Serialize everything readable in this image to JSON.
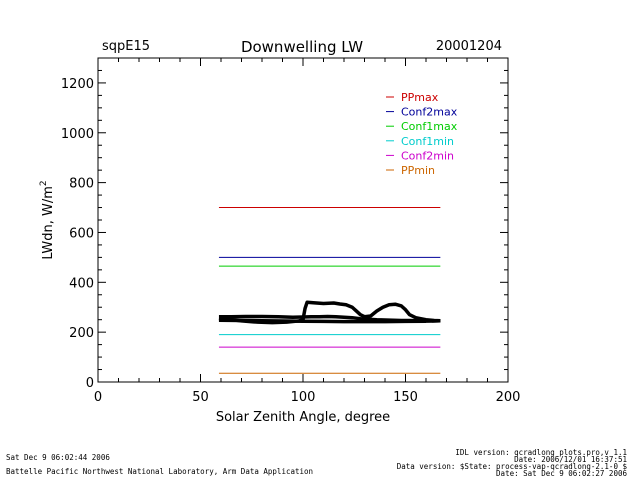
{
  "header": {
    "site": "sqpE15",
    "title": "Downwelling LW",
    "date": "20001204"
  },
  "footer": {
    "left_line1": "Sat Dec  9 06:02:44 2006",
    "left_line2": "Battelle Pacific Northwest National Laboratory, Arm Data Application",
    "right_line1": "IDL version: qcradlong_plots.pro,v 1.1",
    "right_line2": "Date: 2006/12/01 16:37:51",
    "right_line3": "Data version: $State: process-vap-qcradlong-2.1-0 $",
    "right_line4": "Date: Sat Dec  9 06:02:27 2006"
  },
  "colors": {
    "PPmax": "#cc0000",
    "Conf2max": "#000099",
    "Conf1max": "#00cc00",
    "Conf1min": "#00cccc",
    "Conf2min": "#cc00cc",
    "PPmin": "#cc6600",
    "data": "#000000"
  },
  "chart_data": {
    "type": "line",
    "xlabel": "Solar Zenith Angle, degree",
    "ylabel": "LWdn, W/m",
    "ylabel_sup": "2",
    "xlim": [
      0,
      200
    ],
    "ylim": [
      0,
      1300
    ],
    "xticks": [
      0,
      50,
      100,
      150,
      200
    ],
    "yticks": [
      0,
      200,
      400,
      600,
      800,
      1000,
      1200
    ],
    "legend_position": "top-right",
    "series": [
      {
        "name": "PPmax",
        "x": [
          59,
          167
        ],
        "y": [
          700,
          700
        ]
      },
      {
        "name": "Conf2max",
        "x": [
          59,
          167
        ],
        "y": [
          500,
          500
        ]
      },
      {
        "name": "Conf1max",
        "x": [
          59,
          167
        ],
        "y": [
          465,
          465
        ]
      },
      {
        "name": "Conf1min",
        "x": [
          59,
          167
        ],
        "y": [
          190,
          190
        ]
      },
      {
        "name": "Conf2min",
        "x": [
          59,
          167
        ],
        "y": [
          140,
          140
        ]
      },
      {
        "name": "PPmin",
        "x": [
          59,
          167
        ],
        "y": [
          35,
          35
        ]
      }
    ],
    "observations": [
      {
        "x": [
          59,
          65,
          72,
          80,
          88,
          95,
          100,
          104,
          108,
          112,
          116,
          120,
          124,
          128,
          132,
          136,
          140,
          144,
          148,
          152,
          156,
          160,
          163,
          167
        ],
        "y": [
          262,
          262,
          263,
          263,
          262,
          260,
          261,
          262,
          262,
          263,
          262,
          260,
          258,
          254,
          252,
          250,
          249,
          248,
          247,
          247,
          246,
          246,
          245,
          246
        ]
      },
      {
        "x": [
          59,
          63,
          70,
          78,
          85,
          92,
          98,
          100,
          101,
          102,
          105,
          110,
          115,
          118,
          121,
          124,
          126,
          128,
          130,
          133,
          136,
          139,
          142,
          145,
          148,
          150,
          152,
          155,
          160,
          164,
          167
        ],
        "y": [
          255,
          252,
          245,
          240,
          238,
          240,
          245,
          250,
          295,
          320,
          318,
          315,
          317,
          313,
          310,
          300,
          285,
          270,
          262,
          265,
          285,
          300,
          310,
          312,
          305,
          290,
          270,
          258,
          250,
          247,
          246
        ]
      },
      {
        "x": [
          59,
          70,
          80,
          90,
          100,
          110,
          120,
          130,
          140,
          150,
          160,
          167
        ],
        "y": [
          248,
          247,
          246,
          245,
          244,
          243,
          242,
          242,
          242,
          243,
          244,
          246
        ]
      }
    ]
  }
}
